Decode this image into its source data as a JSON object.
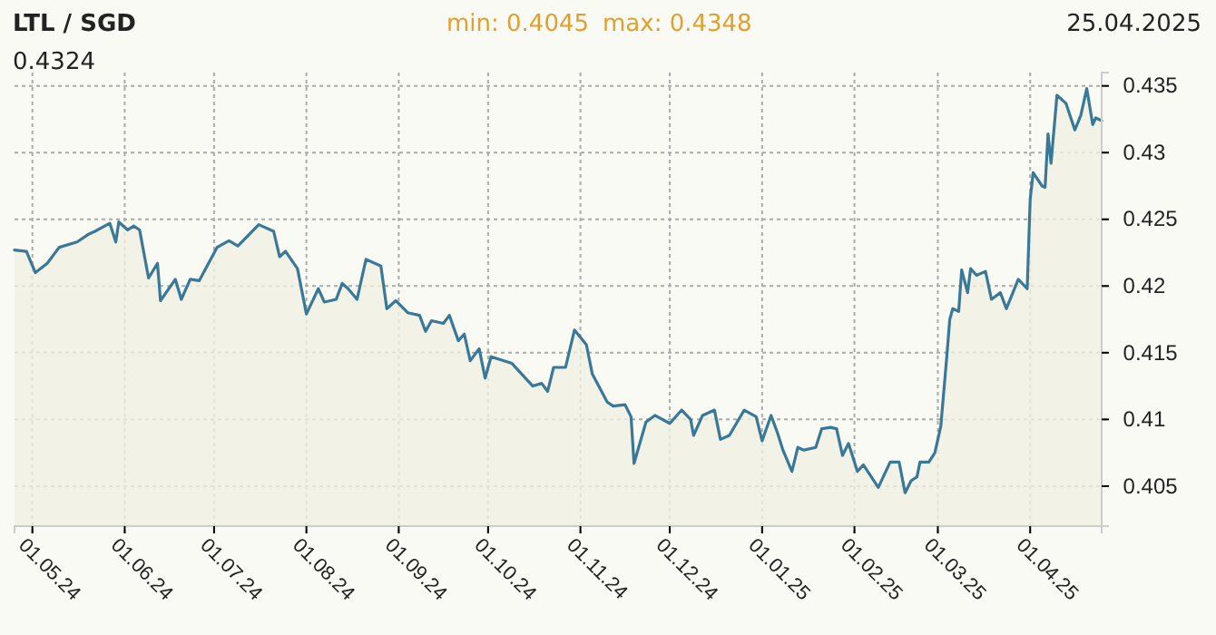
{
  "chart_data": {
    "type": "area",
    "title": "LTL / SGD",
    "annotations": [
      "min: 0.4045",
      "max: 0.4348",
      "25.04.2025",
      "0.4324"
    ],
    "x": [
      "2024-04-25",
      "2024-04-29",
      "2024-05-02",
      "2024-05-06",
      "2024-05-10",
      "2024-05-16",
      "2024-05-20",
      "2024-05-22",
      "2024-05-27",
      "2024-05-29",
      "2024-05-30",
      "2024-06-02",
      "2024-06-04",
      "2024-06-06",
      "2024-06-09",
      "2024-06-12",
      "2024-06-13",
      "2024-06-18",
      "2024-06-20",
      "2024-06-23",
      "2024-06-26",
      "2024-07-02",
      "2024-07-06",
      "2024-07-09",
      "2024-07-16",
      "2024-07-21",
      "2024-07-23",
      "2024-07-25",
      "2024-07-29",
      "2024-08-01",
      "2024-08-05",
      "2024-08-07",
      "2024-08-11",
      "2024-08-13",
      "2024-08-15",
      "2024-08-18",
      "2024-08-21",
      "2024-08-26",
      "2024-08-28",
      "2024-08-31",
      "2024-09-04",
      "2024-09-08",
      "2024-09-10",
      "2024-09-12",
      "2024-09-16",
      "2024-09-18",
      "2024-09-21",
      "2024-09-23",
      "2024-09-25",
      "2024-09-28",
      "2024-09-30",
      "2024-10-02",
      "2024-10-09",
      "2024-10-16",
      "2024-10-19",
      "2024-10-21",
      "2024-10-23",
      "2024-10-27",
      "2024-10-30",
      "2024-11-03",
      "2024-11-05",
      "2024-11-10",
      "2024-11-12",
      "2024-11-16",
      "2024-11-18",
      "2024-11-19",
      "2024-11-23",
      "2024-11-26",
      "2024-12-01",
      "2024-12-05",
      "2024-12-08",
      "2024-12-09",
      "2024-12-12",
      "2024-12-16",
      "2024-12-18",
      "2024-12-21",
      "2024-12-26",
      "2024-12-30",
      "2025-01-01",
      "2025-01-04",
      "2025-01-06",
      "2025-01-08",
      "2025-01-11",
      "2025-01-13",
      "2025-01-15",
      "2025-01-19",
      "2025-01-21",
      "2025-01-24",
      "2025-01-26",
      "2025-01-28",
      "2025-01-30",
      "2025-02-02",
      "2025-02-04",
      "2025-02-09",
      "2025-02-13",
      "2025-02-16",
      "2025-02-18",
      "2025-02-20",
      "2025-02-22",
      "2025-02-23",
      "2025-02-26",
      "2025-02-28",
      "2025-03-02",
      "2025-03-04",
      "2025-03-05",
      "2025-03-06",
      "2025-03-08",
      "2025-03-09",
      "2025-03-11",
      "2025-03-12",
      "2025-03-14",
      "2025-03-17",
      "2025-03-19",
      "2025-03-22",
      "2025-03-24",
      "2025-03-28",
      "2025-03-31",
      "2025-04-01",
      "2025-04-02",
      "2025-04-05",
      "2025-04-06",
      "2025-04-07",
      "2025-04-08",
      "2025-04-10",
      "2025-04-13",
      "2025-04-16",
      "2025-04-18",
      "2025-04-20",
      "2025-04-22",
      "2025-04-23",
      "2025-04-25"
    ],
    "series": [
      {
        "color": "#3a7898",
        "values": [
          0.4227,
          0.4226,
          0.421,
          0.4217,
          0.4229,
          0.4233,
          0.4239,
          0.4241,
          0.4247,
          0.4233,
          0.4248,
          0.4242,
          0.4245,
          0.4242,
          0.4206,
          0.4217,
          0.4189,
          0.4205,
          0.419,
          0.4205,
          0.4204,
          0.4229,
          0.4234,
          0.423,
          0.4246,
          0.4241,
          0.4222,
          0.4226,
          0.4213,
          0.4179,
          0.4198,
          0.4188,
          0.419,
          0.4202,
          0.4198,
          0.419,
          0.422,
          0.4215,
          0.4183,
          0.4189,
          0.418,
          0.4178,
          0.4166,
          0.4174,
          0.4172,
          0.4178,
          0.4159,
          0.4164,
          0.4144,
          0.4153,
          0.4131,
          0.4147,
          0.4142,
          0.4125,
          0.4127,
          0.4121,
          0.4139,
          0.4139,
          0.4167,
          0.4156,
          0.4134,
          0.4113,
          0.411,
          0.4111,
          0.4102,
          0.4067,
          0.4098,
          0.4103,
          0.4097,
          0.4107,
          0.41,
          0.4088,
          0.4103,
          0.4107,
          0.4085,
          0.4088,
          0.4107,
          0.4102,
          0.4084,
          0.4103,
          0.4091,
          0.4077,
          0.4061,
          0.4079,
          0.4077,
          0.4079,
          0.4093,
          0.4094,
          0.4093,
          0.4073,
          0.4082,
          0.4061,
          0.4066,
          0.4049,
          0.4068,
          0.4068,
          0.4045,
          0.4054,
          0.4057,
          0.4068,
          0.4068,
          0.4075,
          0.4095,
          0.4147,
          0.4175,
          0.4183,
          0.4181,
          0.4212,
          0.4195,
          0.4213,
          0.4208,
          0.4211,
          0.419,
          0.4195,
          0.4183,
          0.4205,
          0.4198,
          0.4265,
          0.4285,
          0.4275,
          0.4274,
          0.4314,
          0.4292,
          0.4343,
          0.4337,
          0.4317,
          0.4328,
          0.4348,
          0.4321,
          0.4326,
          0.4324
        ]
      }
    ],
    "xlim": [
      "2024-04-25",
      "2025-04-25"
    ],
    "xticks": [
      {
        "value": "2024-05-01",
        "label": "01.05.24"
      },
      {
        "value": "2024-06-01",
        "label": "01.06.24"
      },
      {
        "value": "2024-07-01",
        "label": "01.07.24"
      },
      {
        "value": "2024-08-01",
        "label": "01.08.24"
      },
      {
        "value": "2024-09-01",
        "label": "01.09.24"
      },
      {
        "value": "2024-10-01",
        "label": "01.10.24"
      },
      {
        "value": "2024-11-01",
        "label": "01.11.24"
      },
      {
        "value": "2024-12-01",
        "label": "01.12.24"
      },
      {
        "value": "2025-01-01",
        "label": "01.01.25"
      },
      {
        "value": "2025-02-01",
        "label": "01.02.25"
      },
      {
        "value": "2025-03-01",
        "label": "01.03.25"
      },
      {
        "value": "2025-04-01",
        "label": "01.04.25"
      }
    ],
    "ylim": [
      0.402,
      0.436
    ],
    "yticks": [
      0.405,
      0.41,
      0.415,
      0.42,
      0.425,
      0.43,
      0.435
    ],
    "grid": true
  }
}
